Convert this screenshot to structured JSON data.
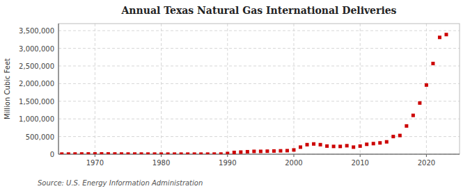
{
  "chart_data": {
    "type": "scatter",
    "title": "Annual Texas Natural Gas International Deliveries",
    "y_label": "Million Cubic Feet",
    "source": "Source: U.S. Energy Information Administration",
    "color": "#cc0000",
    "marker": "square",
    "grid": true,
    "xlim": [
      1964.5,
      2025
    ],
    "ylim": [
      0,
      3700000
    ],
    "xticks": [
      1970,
      1980,
      1990,
      2000,
      2010,
      2020
    ],
    "yticks": [
      0,
      {
        "value": 500000,
        "label": "500,000"
      },
      {
        "value": 1000000,
        "label": "1,000,000"
      },
      {
        "value": 1500000,
        "label": "1,500,000"
      },
      {
        "value": 2000000,
        "label": "2,000,000"
      },
      {
        "value": 2500000,
        "label": "2,500,000"
      },
      {
        "value": 3000000,
        "label": "3,000,000"
      },
      {
        "value": 3500000,
        "label": "3,500,000"
      }
    ],
    "x": [
      1965,
      1966,
      1967,
      1968,
      1969,
      1970,
      1971,
      1972,
      1973,
      1974,
      1975,
      1976,
      1977,
      1978,
      1979,
      1980,
      1981,
      1982,
      1983,
      1984,
      1985,
      1986,
      1987,
      1988,
      1989,
      1990,
      1991,
      1992,
      1993,
      1994,
      1995,
      1996,
      1997,
      1998,
      1999,
      2000,
      2001,
      2002,
      2003,
      2004,
      2005,
      2006,
      2007,
      2008,
      2009,
      2010,
      2011,
      2012,
      2013,
      2014,
      2015,
      2016,
      2017,
      2018,
      2019,
      2020,
      2021,
      2022,
      2023
    ],
    "values": [
      3000,
      4000,
      5000,
      6000,
      7000,
      8000,
      8000,
      7000,
      6000,
      5000,
      4000,
      4000,
      4000,
      3000,
      3000,
      2000,
      2000,
      2000,
      2000,
      2000,
      2000,
      2000,
      2000,
      3000,
      4000,
      20000,
      50000,
      60000,
      70000,
      80000,
      80000,
      85000,
      90000,
      95000,
      100000,
      120000,
      200000,
      270000,
      290000,
      270000,
      230000,
      220000,
      220000,
      240000,
      200000,
      230000,
      280000,
      300000,
      320000,
      350000,
      500000,
      530000,
      800000,
      1100000,
      1450000,
      1960000,
      2570000,
      3310000,
      3390000
    ]
  }
}
